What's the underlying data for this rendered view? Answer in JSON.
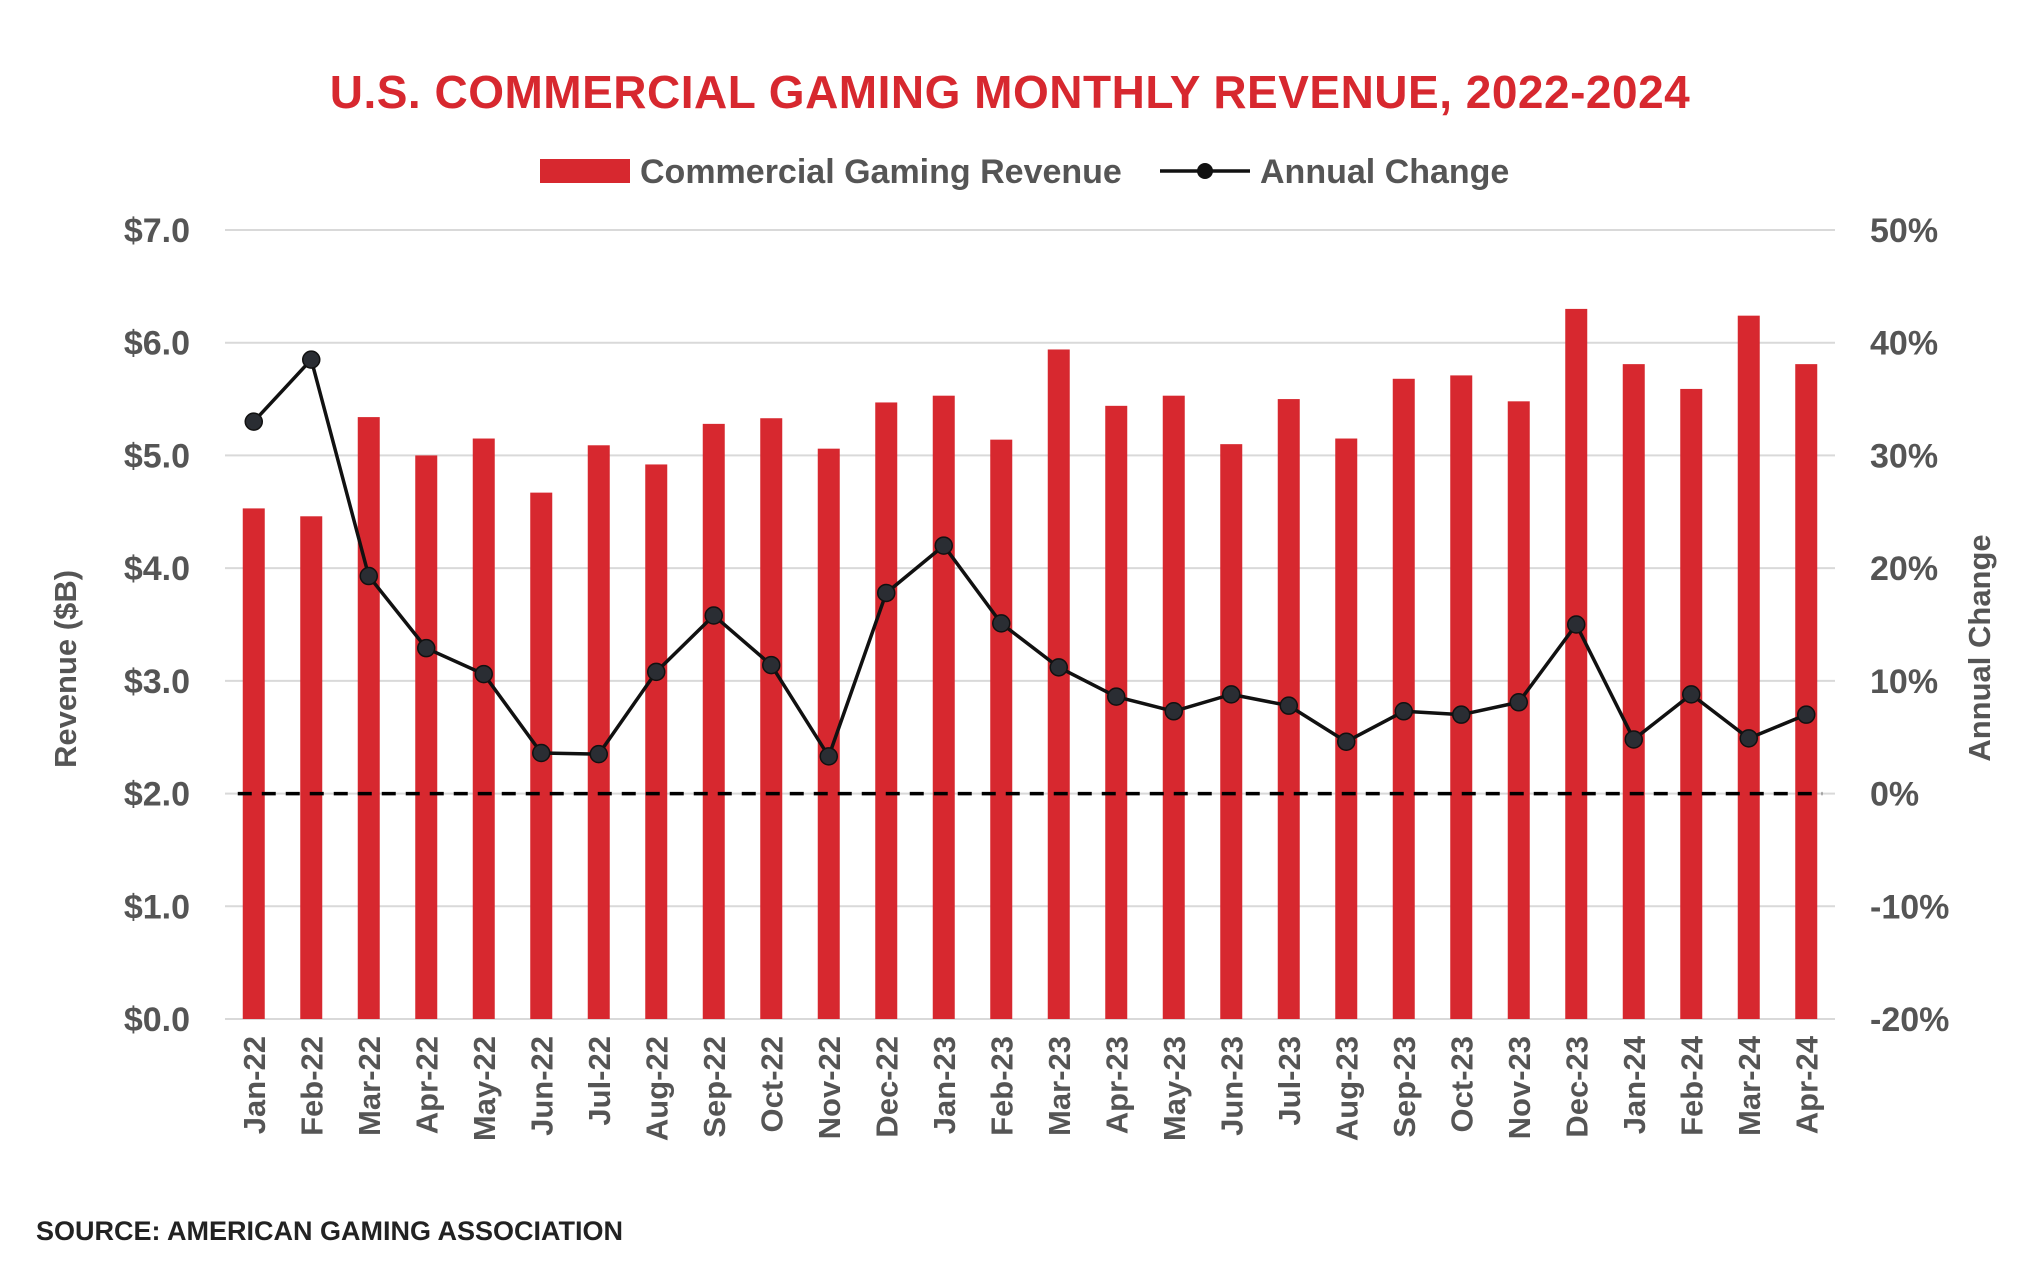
{
  "chart_data": {
    "type": "bar",
    "title": "U.S. COMMERCIAL GAMING MONTHLY REVENUE, 2022-2024",
    "source": "SOURCE: AMERICAN GAMING ASSOCIATION",
    "categories": [
      "Jan-22",
      "Feb-22",
      "Mar-22",
      "Apr-22",
      "May-22",
      "Jun-22",
      "Jul-22",
      "Aug-22",
      "Sep-22",
      "Oct-22",
      "Nov-22",
      "Dec-22",
      "Jan-23",
      "Feb-23",
      "Mar-23",
      "Apr-23",
      "May-23",
      "Jun-23",
      "Jul-23",
      "Aug-23",
      "Sep-23",
      "Oct-23",
      "Nov-23",
      "Dec-23",
      "Jan-24",
      "Feb-24",
      "Mar-24",
      "Apr-24"
    ],
    "series": [
      {
        "name": "Commercial Gaming Revenue",
        "type": "bar",
        "axis": "left",
        "color": "#d7282f",
        "values": [
          4.53,
          4.46,
          5.34,
          5.0,
          5.15,
          4.67,
          5.09,
          4.92,
          5.28,
          5.33,
          5.06,
          5.47,
          5.53,
          5.14,
          5.94,
          5.44,
          5.53,
          5.1,
          5.5,
          5.15,
          5.68,
          5.71,
          5.48,
          6.3,
          5.81,
          5.59,
          6.24,
          5.81
        ]
      },
      {
        "name": "Annual Change",
        "type": "line",
        "axis": "right",
        "color": "#111111",
        "values": [
          33.0,
          38.5,
          19.3,
          12.9,
          10.6,
          3.6,
          3.5,
          10.8,
          15.8,
          11.4,
          3.3,
          17.8,
          22.0,
          15.1,
          11.2,
          8.6,
          7.3,
          8.8,
          7.8,
          4.6,
          7.3,
          7.0,
          8.1,
          15.0,
          4.8,
          8.8,
          4.9,
          7.0
        ]
      }
    ],
    "y_left": {
      "label": "Revenue ($B)",
      "min": 0,
      "max": 7,
      "step": 1,
      "ticks": [
        "$0.0",
        "$1.0",
        "$2.0",
        "$3.0",
        "$4.0",
        "$5.0",
        "$6.0",
        "$7.0"
      ]
    },
    "y_right": {
      "label": "Annual Change",
      "min": -20,
      "max": 50,
      "step": 10,
      "ticks": [
        "-20%",
        "-10%",
        "0%",
        "10%",
        "20%",
        "30%",
        "40%",
        "50%"
      ]
    },
    "reference_line": {
      "axis": "right",
      "value": 0,
      "style": "dashed"
    },
    "grid": true,
    "legend_position": "top-center"
  },
  "colors": {
    "title": "#d7282f",
    "text": "#555555",
    "bar": "#d7282f",
    "line": "#111111",
    "grid": "#d9d9d9"
  }
}
